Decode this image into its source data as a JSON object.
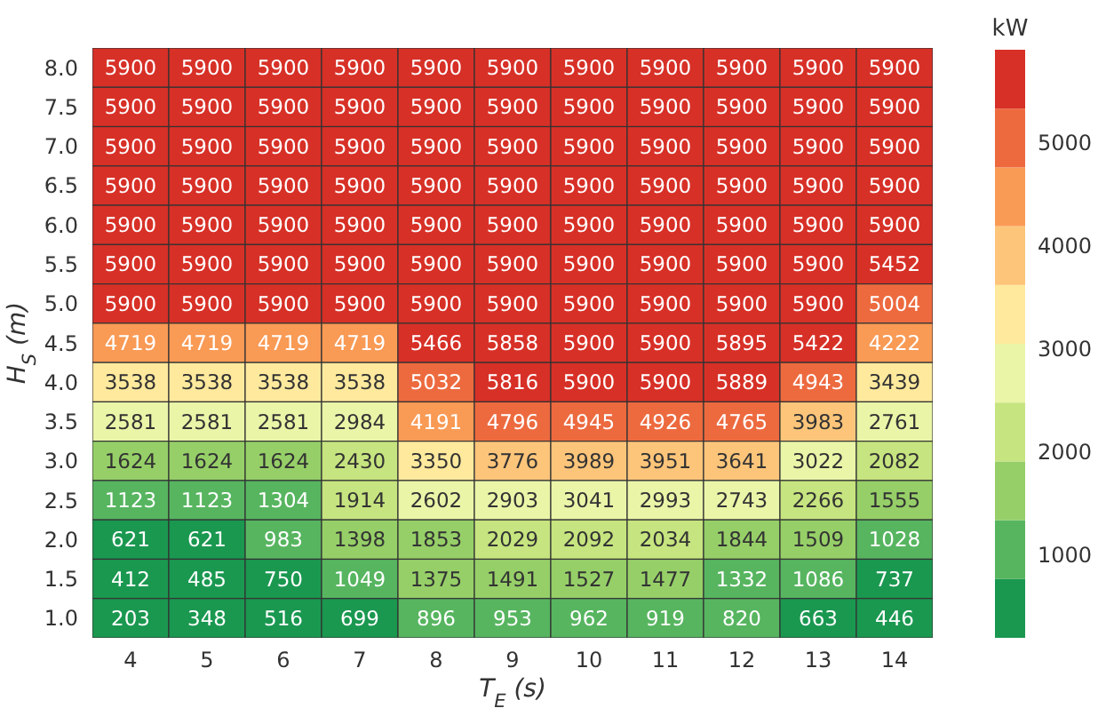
{
  "chart_data": {
    "type": "heatmap",
    "xlabel": "T$_{E}$ (s)",
    "ylabel": "H$_{S}$ (m)",
    "clabel": "kW",
    "categories": [
      "4",
      "5",
      "6",
      "7",
      "8",
      "9",
      "10",
      "11",
      "12",
      "13",
      "14"
    ],
    "y_categories": [
      "8.0",
      "7.5",
      "7.0",
      "6.5",
      "6.0",
      "5.5",
      "5.0",
      "4.5",
      "4.0",
      "3.5",
      "3.0",
      "2.5",
      "2.0",
      "1.5",
      "1.0"
    ],
    "cells": [
      [
        5900,
        5900,
        5900,
        5900,
        5900,
        5900,
        5900,
        5900,
        5900,
        5900,
        5900
      ],
      [
        5900,
        5900,
        5900,
        5900,
        5900,
        5900,
        5900,
        5900,
        5900,
        5900,
        5900
      ],
      [
        5900,
        5900,
        5900,
        5900,
        5900,
        5900,
        5900,
        5900,
        5900,
        5900,
        5900
      ],
      [
        5900,
        5900,
        5900,
        5900,
        5900,
        5900,
        5900,
        5900,
        5900,
        5900,
        5900
      ],
      [
        5900,
        5900,
        5900,
        5900,
        5900,
        5900,
        5900,
        5900,
        5900,
        5900,
        5900
      ],
      [
        5900,
        5900,
        5900,
        5900,
        5900,
        5900,
        5900,
        5900,
        5900,
        5900,
        5452
      ],
      [
        5900,
        5900,
        5900,
        5900,
        5900,
        5900,
        5900,
        5900,
        5900,
        5900,
        5004
      ],
      [
        4719,
        4719,
        4719,
        4719,
        5466,
        5858,
        5900,
        5900,
        5895,
        5422,
        4222
      ],
      [
        3538,
        3538,
        3538,
        3538,
        5032,
        5816,
        5900,
        5900,
        5889,
        4943,
        3439
      ],
      [
        2581,
        2581,
        2581,
        2984,
        4191,
        4796,
        4945,
        4926,
        4765,
        3983,
        2761
      ],
      [
        1624,
        1624,
        1624,
        2430,
        3350,
        3776,
        3989,
        3951,
        3641,
        3022,
        2082
      ],
      [
        1123,
        1123,
        1304,
        1914,
        2602,
        2903,
        3041,
        2993,
        2743,
        2266,
        1555
      ],
      [
        621,
        621,
        983,
        1398,
        1853,
        2029,
        2092,
        2034,
        1844,
        1509,
        1028
      ],
      [
        412,
        485,
        750,
        1049,
        1375,
        1491,
        1527,
        1477,
        1332,
        1086,
        737
      ],
      [
        203,
        348,
        516,
        699,
        896,
        953,
        962,
        919,
        820,
        663,
        446
      ]
    ],
    "colors": [
      "#1a9850",
      "#57b560",
      "#96cf68",
      "#c6e47f",
      "#eaf5a8",
      "#fee99d",
      "#fdc57a",
      "#f99a55",
      "#ed6a3f",
      "#d73027"
    ],
    "clim": [
      203,
      5900
    ],
    "cticks": [
      1000,
      2000,
      3000,
      4000,
      5000
    ],
    "data_labels": true
  }
}
